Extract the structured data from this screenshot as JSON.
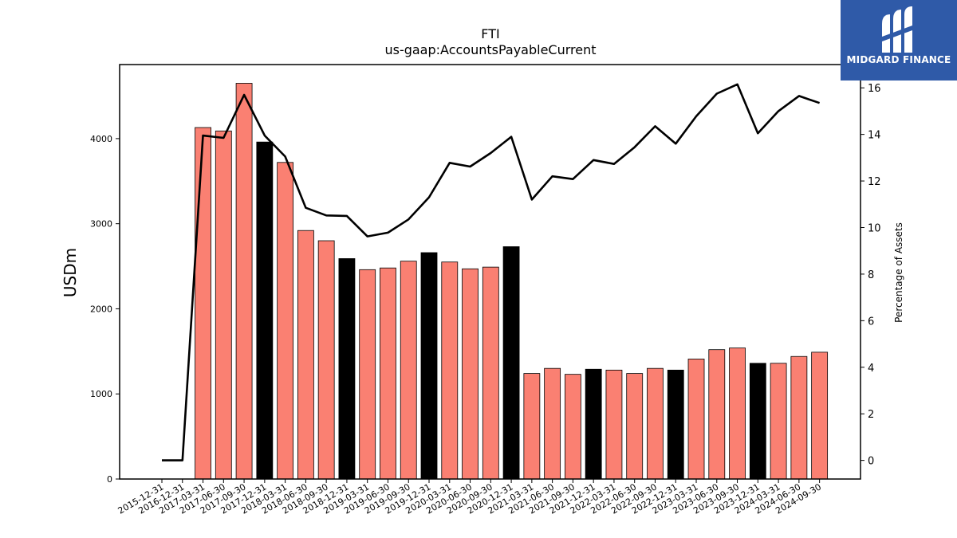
{
  "chart_data": {
    "type": "bar+line",
    "title": "FTI",
    "subtitle": "us-gaap:AccountsPayableCurrent",
    "ylabel": "USDm",
    "y2label": "Percentage of Assets",
    "ylim": [
      0,
      4870
    ],
    "y2lim": [
      -0.8,
      17.0
    ],
    "yticks": [
      0,
      1000,
      2000,
      3000,
      4000
    ],
    "y2ticks": [
      0,
      2,
      4,
      6,
      8,
      10,
      12,
      14,
      16
    ],
    "categories": [
      "2015-12-31",
      "2016-12-31",
      "2017-03-31",
      "2017-06-30",
      "2017-09-30",
      "2017-12-31",
      "2018-03-31",
      "2018-06-30",
      "2018-09-30",
      "2018-12-31",
      "2019-03-31",
      "2019-06-30",
      "2019-09-30",
      "2019-12-31",
      "2020-03-31",
      "2020-06-30",
      "2020-09-30",
      "2020-12-31",
      "2021-03-31",
      "2021-06-30",
      "2021-09-30",
      "2021-12-31",
      "2022-03-31",
      "2022-06-30",
      "2022-09-30",
      "2022-12-31",
      "2023-03-31",
      "2023-06-30",
      "2023-09-30",
      "2023-12-31",
      "2024-03-31",
      "2024-06-30",
      "2024-09-30"
    ],
    "series": [
      {
        "kind": "bar",
        "values": [
          0,
          0,
          4130,
          4090,
          4650,
          3960,
          3720,
          2920,
          2800,
          2590,
          2460,
          2480,
          2560,
          2660,
          2550,
          2470,
          2490,
          2730,
          1240,
          1300,
          1230,
          1290,
          1280,
          1240,
          1300,
          1280,
          1410,
          1520,
          1540,
          1360,
          1360,
          1440,
          1490
        ],
        "year_end": [
          false,
          false,
          false,
          false,
          false,
          true,
          false,
          false,
          false,
          true,
          false,
          false,
          false,
          true,
          false,
          false,
          false,
          true,
          false,
          false,
          false,
          true,
          false,
          false,
          false,
          true,
          false,
          false,
          false,
          true,
          false,
          false,
          false
        ]
      },
      {
        "kind": "line",
        "axis": "right",
        "values": [
          0.0,
          0.0,
          13.95,
          13.85,
          15.7,
          13.95,
          13.05,
          10.85,
          10.52,
          10.5,
          9.62,
          9.78,
          10.35,
          11.3,
          12.78,
          12.62,
          13.2,
          13.9,
          11.2,
          12.2,
          12.08,
          12.9,
          12.73,
          13.45,
          14.35,
          13.6,
          14.78,
          15.75,
          16.15,
          14.05,
          15.0,
          15.65,
          15.35
        ]
      }
    ],
    "colors": {
      "bar": "#fa8072",
      "bar_year_end": "#000000",
      "line": "#000000"
    }
  },
  "logo": {
    "text": "MIDGARD FINANCE",
    "background": "#2f5aa8"
  }
}
